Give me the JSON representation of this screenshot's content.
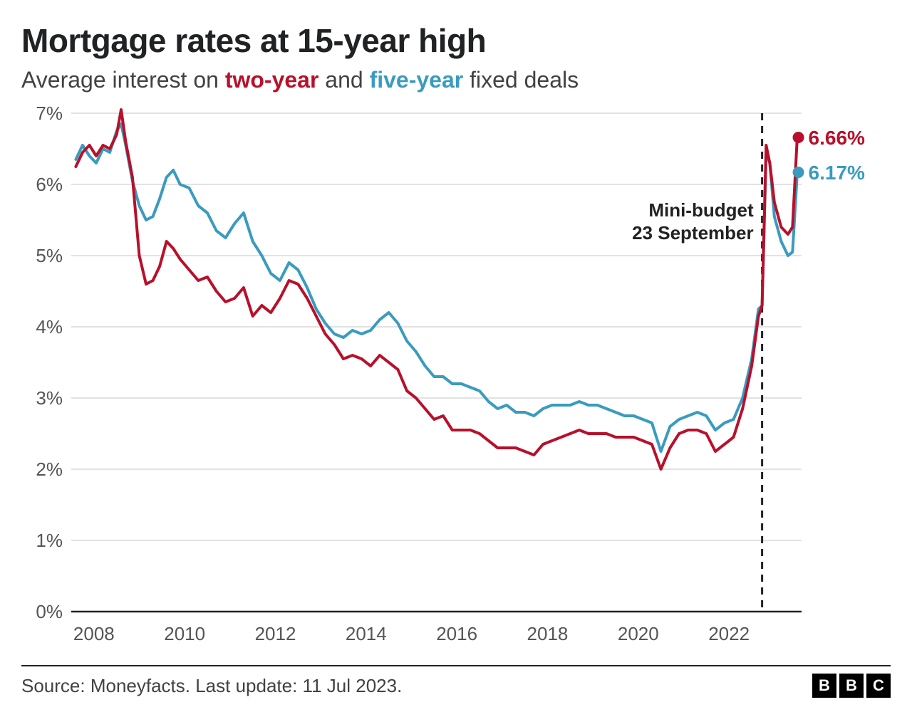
{
  "chart": {
    "type": "line",
    "title": "Mortgage rates at 15-year high",
    "subtitle_prefix": "Average interest on ",
    "subtitle_mid": " and ",
    "subtitle_suffix": " fixed deals",
    "series1_name": "two-year",
    "series2_name": "five-year",
    "colors": {
      "two_year": "#b8102b",
      "five_year": "#3a9bbf",
      "background": "#ffffff",
      "grid": "#d9d9d9",
      "axis": "#222222",
      "text": "#404244",
      "title": "#202224"
    },
    "ylim": [
      0,
      7
    ],
    "ytick_step": 1,
    "yticks": [
      0,
      1,
      2,
      3,
      4,
      5,
      6,
      7
    ],
    "ytick_labels": [
      "0%",
      "1%",
      "2%",
      "3%",
      "4%",
      "5%",
      "6%",
      "7%"
    ],
    "xlim": [
      2007.5,
      2023.6
    ],
    "xticks": [
      2008,
      2010,
      2012,
      2014,
      2016,
      2018,
      2020,
      2022
    ],
    "xtick_labels": [
      "2008",
      "2010",
      "2012",
      "2014",
      "2016",
      "2018",
      "2020",
      "2022"
    ],
    "line_width": 4,
    "title_fontsize": 46,
    "subtitle_fontsize": 32,
    "axis_label_fontsize": 26,
    "annotation": {
      "label_line1": "Mini-budget",
      "label_line2": "23 September",
      "x": 2022.73,
      "fontsize": 26
    },
    "end_labels": {
      "two_year": "6.66%",
      "five_year": "6.17%"
    },
    "two_year": [
      [
        2007.6,
        6.25
      ],
      [
        2007.75,
        6.45
      ],
      [
        2007.9,
        6.55
      ],
      [
        2008.05,
        6.4
      ],
      [
        2008.2,
        6.55
      ],
      [
        2008.35,
        6.5
      ],
      [
        2008.5,
        6.7
      ],
      [
        2008.6,
        7.05
      ],
      [
        2008.7,
        6.6
      ],
      [
        2008.85,
        6.1
      ],
      [
        2009.0,
        5.0
      ],
      [
        2009.15,
        4.6
      ],
      [
        2009.3,
        4.65
      ],
      [
        2009.45,
        4.85
      ],
      [
        2009.6,
        5.2
      ],
      [
        2009.75,
        5.1
      ],
      [
        2009.9,
        4.95
      ],
      [
        2010.1,
        4.8
      ],
      [
        2010.3,
        4.65
      ],
      [
        2010.5,
        4.7
      ],
      [
        2010.7,
        4.5
      ],
      [
        2010.9,
        4.35
      ],
      [
        2011.1,
        4.4
      ],
      [
        2011.3,
        4.55
      ],
      [
        2011.5,
        4.15
      ],
      [
        2011.7,
        4.3
      ],
      [
        2011.9,
        4.2
      ],
      [
        2012.1,
        4.4
      ],
      [
        2012.3,
        4.65
      ],
      [
        2012.5,
        4.6
      ],
      [
        2012.7,
        4.4
      ],
      [
        2012.9,
        4.15
      ],
      [
        2013.1,
        3.9
      ],
      [
        2013.3,
        3.75
      ],
      [
        2013.5,
        3.55
      ],
      [
        2013.7,
        3.6
      ],
      [
        2013.9,
        3.55
      ],
      [
        2014.1,
        3.45
      ],
      [
        2014.3,
        3.6
      ],
      [
        2014.5,
        3.5
      ],
      [
        2014.7,
        3.4
      ],
      [
        2014.9,
        3.1
      ],
      [
        2015.1,
        3.0
      ],
      [
        2015.3,
        2.85
      ],
      [
        2015.5,
        2.7
      ],
      [
        2015.7,
        2.75
      ],
      [
        2015.9,
        2.55
      ],
      [
        2016.1,
        2.55
      ],
      [
        2016.3,
        2.55
      ],
      [
        2016.5,
        2.5
      ],
      [
        2016.7,
        2.4
      ],
      [
        2016.9,
        2.3
      ],
      [
        2017.1,
        2.3
      ],
      [
        2017.3,
        2.3
      ],
      [
        2017.5,
        2.25
      ],
      [
        2017.7,
        2.2
      ],
      [
        2017.9,
        2.35
      ],
      [
        2018.1,
        2.4
      ],
      [
        2018.3,
        2.45
      ],
      [
        2018.5,
        2.5
      ],
      [
        2018.7,
        2.55
      ],
      [
        2018.9,
        2.5
      ],
      [
        2019.1,
        2.5
      ],
      [
        2019.3,
        2.5
      ],
      [
        2019.5,
        2.45
      ],
      [
        2019.7,
        2.45
      ],
      [
        2019.9,
        2.45
      ],
      [
        2020.1,
        2.4
      ],
      [
        2020.3,
        2.35
      ],
      [
        2020.5,
        2.0
      ],
      [
        2020.7,
        2.3
      ],
      [
        2020.9,
        2.5
      ],
      [
        2021.1,
        2.55
      ],
      [
        2021.3,
        2.55
      ],
      [
        2021.5,
        2.5
      ],
      [
        2021.7,
        2.25
      ],
      [
        2021.9,
        2.35
      ],
      [
        2022.1,
        2.45
      ],
      [
        2022.3,
        2.85
      ],
      [
        2022.5,
        3.45
      ],
      [
        2022.65,
        4.15
      ],
      [
        2022.73,
        4.3
      ],
      [
        2022.82,
        6.55
      ],
      [
        2022.9,
        6.3
      ],
      [
        2023.0,
        5.75
      ],
      [
        2023.15,
        5.4
      ],
      [
        2023.3,
        5.3
      ],
      [
        2023.4,
        5.4
      ],
      [
        2023.5,
        6.6
      ],
      [
        2023.53,
        6.66
      ]
    ],
    "five_year": [
      [
        2007.6,
        6.35
      ],
      [
        2007.75,
        6.55
      ],
      [
        2007.9,
        6.4
      ],
      [
        2008.05,
        6.3
      ],
      [
        2008.2,
        6.5
      ],
      [
        2008.35,
        6.45
      ],
      [
        2008.5,
        6.75
      ],
      [
        2008.6,
        6.85
      ],
      [
        2008.7,
        6.55
      ],
      [
        2008.85,
        6.05
      ],
      [
        2009.0,
        5.7
      ],
      [
        2009.15,
        5.5
      ],
      [
        2009.3,
        5.55
      ],
      [
        2009.45,
        5.8
      ],
      [
        2009.6,
        6.1
      ],
      [
        2009.75,
        6.2
      ],
      [
        2009.9,
        6.0
      ],
      [
        2010.1,
        5.95
      ],
      [
        2010.3,
        5.7
      ],
      [
        2010.5,
        5.6
      ],
      [
        2010.7,
        5.35
      ],
      [
        2010.9,
        5.25
      ],
      [
        2011.1,
        5.45
      ],
      [
        2011.3,
        5.6
      ],
      [
        2011.5,
        5.2
      ],
      [
        2011.7,
        5.0
      ],
      [
        2011.9,
        4.75
      ],
      [
        2012.1,
        4.65
      ],
      [
        2012.3,
        4.9
      ],
      [
        2012.5,
        4.8
      ],
      [
        2012.7,
        4.55
      ],
      [
        2012.9,
        4.25
      ],
      [
        2013.1,
        4.05
      ],
      [
        2013.3,
        3.9
      ],
      [
        2013.5,
        3.85
      ],
      [
        2013.7,
        3.95
      ],
      [
        2013.9,
        3.9
      ],
      [
        2014.1,
        3.95
      ],
      [
        2014.3,
        4.1
      ],
      [
        2014.5,
        4.2
      ],
      [
        2014.7,
        4.05
      ],
      [
        2014.9,
        3.8
      ],
      [
        2015.1,
        3.65
      ],
      [
        2015.3,
        3.45
      ],
      [
        2015.5,
        3.3
      ],
      [
        2015.7,
        3.3
      ],
      [
        2015.9,
        3.2
      ],
      [
        2016.1,
        3.2
      ],
      [
        2016.3,
        3.15
      ],
      [
        2016.5,
        3.1
      ],
      [
        2016.7,
        2.95
      ],
      [
        2016.9,
        2.85
      ],
      [
        2017.1,
        2.9
      ],
      [
        2017.3,
        2.8
      ],
      [
        2017.5,
        2.8
      ],
      [
        2017.7,
        2.75
      ],
      [
        2017.9,
        2.85
      ],
      [
        2018.1,
        2.9
      ],
      [
        2018.3,
        2.9
      ],
      [
        2018.5,
        2.9
      ],
      [
        2018.7,
        2.95
      ],
      [
        2018.9,
        2.9
      ],
      [
        2019.1,
        2.9
      ],
      [
        2019.3,
        2.85
      ],
      [
        2019.5,
        2.8
      ],
      [
        2019.7,
        2.75
      ],
      [
        2019.9,
        2.75
      ],
      [
        2020.1,
        2.7
      ],
      [
        2020.3,
        2.65
      ],
      [
        2020.5,
        2.25
      ],
      [
        2020.7,
        2.6
      ],
      [
        2020.9,
        2.7
      ],
      [
        2021.1,
        2.75
      ],
      [
        2021.3,
        2.8
      ],
      [
        2021.5,
        2.75
      ],
      [
        2021.7,
        2.55
      ],
      [
        2021.9,
        2.65
      ],
      [
        2022.1,
        2.7
      ],
      [
        2022.3,
        3.0
      ],
      [
        2022.5,
        3.55
      ],
      [
        2022.65,
        4.25
      ],
      [
        2022.73,
        4.3
      ],
      [
        2022.82,
        6.45
      ],
      [
        2022.9,
        6.3
      ],
      [
        2023.0,
        5.55
      ],
      [
        2023.15,
        5.2
      ],
      [
        2023.3,
        5.0
      ],
      [
        2023.4,
        5.05
      ],
      [
        2023.5,
        6.1
      ],
      [
        2023.53,
        6.17
      ]
    ]
  },
  "footer": {
    "source": "Source: Moneyfacts. Last update: 11 Jul 2023.",
    "logo_letters": [
      "B",
      "B",
      "C"
    ]
  }
}
